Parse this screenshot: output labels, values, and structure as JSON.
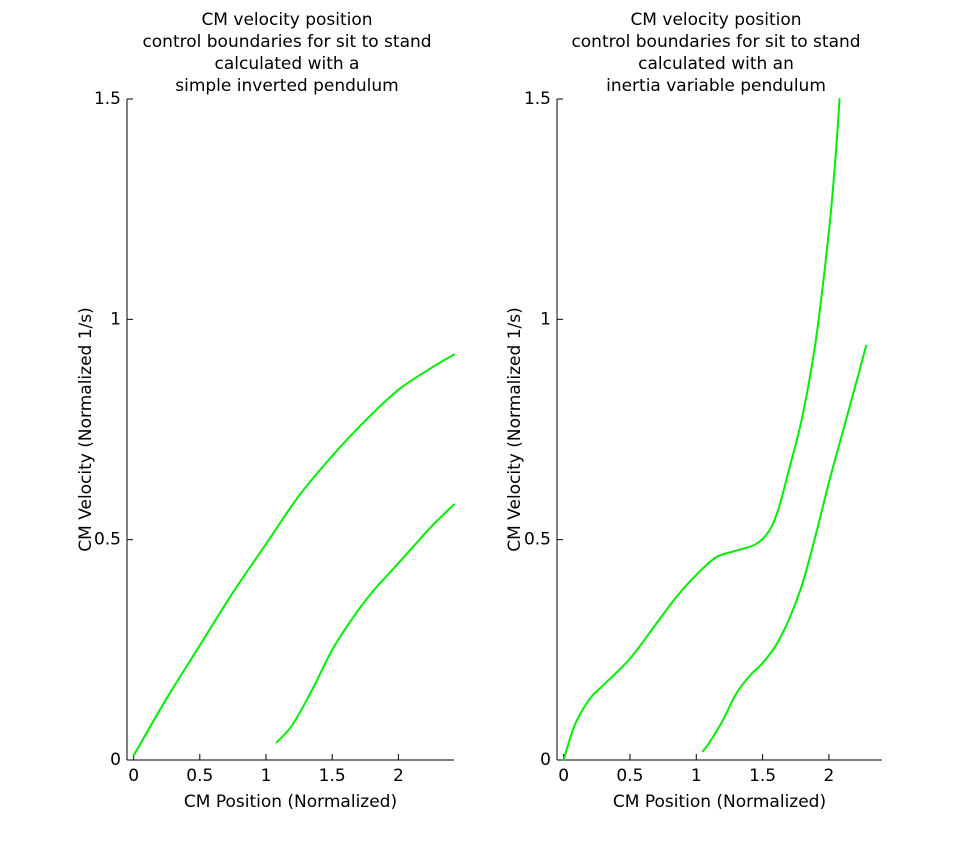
{
  "chart_data": [
    {
      "type": "line",
      "title": [
        "CM velocity position",
        "control boundaries for sit to stand",
        "calculated with a",
        "simple inverted pendulum"
      ],
      "xlabel": "CM Position (Normalized)",
      "ylabel": "CM Velocity (Normalized 1/s)",
      "xlim": [
        -0.05,
        2.42
      ],
      "ylim": [
        0,
        1.5
      ],
      "xticks": [
        0,
        0.5,
        1,
        1.5,
        2
      ],
      "xtick_labels": [
        "0",
        "0.5",
        "1",
        "1.5",
        "2"
      ],
      "yticks": [
        0,
        0.5,
        1,
        1.5
      ],
      "ytick_labels": [
        "0",
        "0.5",
        "1",
        "1.5"
      ],
      "grid": false,
      "series": [
        {
          "color": "#00ee00",
          "x": [
            0,
            0.25,
            0.5,
            0.75,
            1.0,
            1.25,
            1.5,
            1.75,
            2.0,
            2.25,
            2.42
          ],
          "y": [
            0.01,
            0.14,
            0.26,
            0.38,
            0.49,
            0.6,
            0.69,
            0.77,
            0.84,
            0.89,
            0.92
          ]
        },
        {
          "color": "#00ee00",
          "x": [
            1.08,
            1.2,
            1.35,
            1.5,
            1.65,
            1.8,
            1.95,
            2.1,
            2.25,
            2.42
          ],
          "y": [
            0.04,
            0.08,
            0.16,
            0.25,
            0.32,
            0.38,
            0.43,
            0.48,
            0.53,
            0.58
          ]
        }
      ]
    },
    {
      "type": "line",
      "title": [
        "CM velocity position",
        "control boundaries for sit to stand",
        "calculated with an",
        "inertia variable pendulum"
      ],
      "xlabel": "CM Position (Normalized)",
      "ylabel": "CM Velocity (Normalized 1/s)",
      "xlim": [
        -0.05,
        2.4
      ],
      "ylim": [
        0,
        1.5
      ],
      "xticks": [
        0,
        0.5,
        1,
        1.5,
        2
      ],
      "xtick_labels": [
        "0",
        "0.5",
        "1",
        "1.5",
        "2"
      ],
      "yticks": [
        0,
        0.5,
        1,
        1.5
      ],
      "ytick_labels": [
        "0",
        "0.5",
        "1",
        "1.5"
      ],
      "grid": false,
      "series": [
        {
          "color": "#00ee00",
          "x": [
            0.0,
            0.05,
            0.1,
            0.2,
            0.3,
            0.5,
            0.7,
            0.85,
            1.0,
            1.15,
            1.3,
            1.45,
            1.55,
            1.62,
            1.7,
            1.8,
            1.9,
            2.0,
            2.05,
            2.08
          ],
          "y": [
            0.0,
            0.05,
            0.09,
            0.14,
            0.17,
            0.23,
            0.31,
            0.37,
            0.42,
            0.46,
            0.475,
            0.49,
            0.52,
            0.57,
            0.66,
            0.78,
            0.95,
            1.2,
            1.37,
            1.5
          ]
        },
        {
          "color": "#00ee00",
          "x": [
            1.05,
            1.1,
            1.2,
            1.3,
            1.4,
            1.5,
            1.6,
            1.7,
            1.8,
            1.9,
            2.0,
            2.1,
            2.2,
            2.28
          ],
          "y": [
            0.02,
            0.04,
            0.09,
            0.15,
            0.19,
            0.22,
            0.26,
            0.32,
            0.4,
            0.51,
            0.63,
            0.74,
            0.85,
            0.94
          ]
        }
      ]
    }
  ]
}
